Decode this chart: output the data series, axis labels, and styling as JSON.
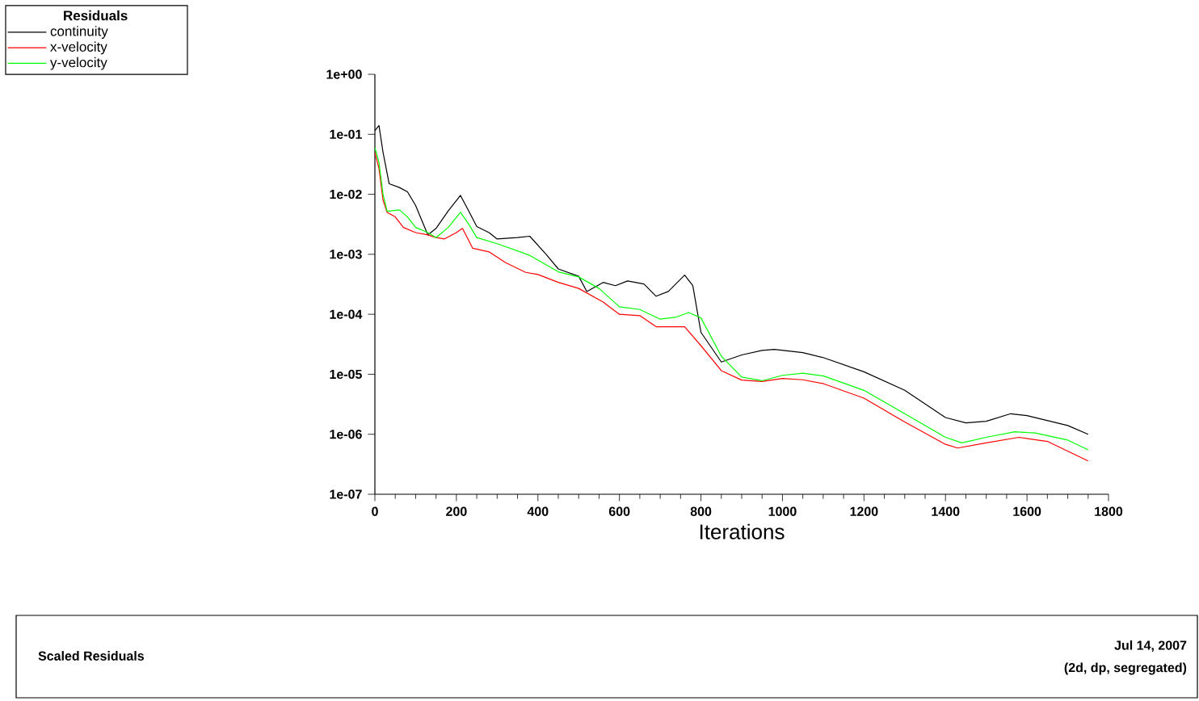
{
  "chart_data": {
    "type": "line",
    "xlabel": "Iterations",
    "legend_title": "Residuals",
    "log": "y",
    "legend": "top left",
    "marker": "none",
    "line_style": "solid",
    "grid": false,
    "xlim": [
      0,
      1800
    ],
    "xticks": [
      0,
      200,
      400,
      600,
      800,
      1000,
      1200,
      1400,
      1600,
      1800
    ],
    "ylim": [
      1e-07,
      1
    ],
    "yticks": [
      {
        "value": 1,
        "label": "1e+00"
      },
      {
        "value": 0.1,
        "label": "1e-01"
      },
      {
        "value": 0.01,
        "label": "1e-02"
      },
      {
        "value": 0.001,
        "label": "1e-03"
      },
      {
        "value": 0.0001,
        "label": "1e-04"
      },
      {
        "value": 1e-05,
        "label": "1e-05"
      },
      {
        "value": 1e-06,
        "label": "1e-06"
      },
      {
        "value": 1e-07,
        "label": "1e-07"
      }
    ],
    "annotations": [
      "Scaled Residuals",
      "Jul 14, 2007",
      "(2d, dp, segregated)"
    ],
    "series": [
      {
        "name": "continuity",
        "color": "#000000",
        "x": [
          0,
          10,
          20,
          35,
          60,
          80,
          100,
          130,
          150,
          180,
          210,
          230,
          250,
          280,
          300,
          350,
          380,
          420,
          450,
          500,
          520,
          560,
          590,
          620,
          660,
          690,
          720,
          760,
          780,
          800,
          850,
          900,
          950,
          980,
          1050,
          1100,
          1200,
          1300,
          1400,
          1450,
          1500,
          1560,
          1600,
          1700,
          1750
        ],
        "values": [
          0.115,
          0.14,
          0.05,
          0.015,
          0.013,
          0.011,
          0.0065,
          0.0021,
          0.0027,
          0.0053,
          0.0096,
          0.0053,
          0.0029,
          0.0023,
          0.0018,
          0.0019,
          0.002,
          0.001,
          0.00057,
          0.00043,
          0.00024,
          0.00034,
          0.0003,
          0.00036,
          0.00032,
          0.0002,
          0.00024,
          0.00045,
          0.0003,
          5e-05,
          1.6e-05,
          2.1e-05,
          2.5e-05,
          2.6e-05,
          2.3e-05,
          1.9e-05,
          1.1e-05,
          5.4e-06,
          1.9e-06,
          1.55e-06,
          1.65e-06,
          2.2e-06,
          2.05e-06,
          1.4e-06,
          1e-06
        ]
      },
      {
        "name": "x-velocity",
        "color": "#ff0000",
        "x": [
          0,
          10,
          20,
          30,
          50,
          70,
          100,
          130,
          150,
          170,
          200,
          215,
          240,
          280,
          320,
          370,
          400,
          450,
          500,
          560,
          600,
          650,
          690,
          760,
          800,
          850,
          900,
          950,
          1000,
          1050,
          1100,
          1200,
          1300,
          1400,
          1430,
          1500,
          1580,
          1650,
          1750
        ],
        "values": [
          0.05,
          0.027,
          0.008,
          0.005,
          0.0042,
          0.0028,
          0.0023,
          0.0021,
          0.0019,
          0.0018,
          0.0023,
          0.0027,
          0.00126,
          0.0011,
          0.00073,
          0.0005,
          0.00046,
          0.00034,
          0.00027,
          0.00016,
          0.0001,
          9.5e-05,
          6.2e-05,
          6.2e-05,
          3e-05,
          1.15e-05,
          8e-06,
          7.6e-06,
          8.5e-06,
          8.1e-06,
          7e-06,
          4e-06,
          1.6e-06,
          6.8e-07,
          5.9e-07,
          7.2e-07,
          8.9e-07,
          7.6e-07,
          3.6e-07
        ]
      },
      {
        "name": "y-velocity",
        "color": "#00ff00",
        "x": [
          0,
          10,
          20,
          30,
          60,
          80,
          100,
          130,
          150,
          180,
          210,
          230,
          250,
          300,
          380,
          450,
          500,
          550,
          600,
          650,
          700,
          740,
          770,
          800,
          850,
          900,
          950,
          1000,
          1050,
          1100,
          1200,
          1300,
          1400,
          1440,
          1500,
          1570,
          1620,
          1700,
          1750
        ],
        "values": [
          0.06,
          0.034,
          0.01,
          0.0052,
          0.0055,
          0.0042,
          0.0028,
          0.0023,
          0.0019,
          0.0028,
          0.005,
          0.0032,
          0.0019,
          0.0015,
          0.00096,
          0.00051,
          0.00042,
          0.00027,
          0.000133,
          0.00012,
          8.3e-05,
          9e-05,
          0.000107,
          8.7e-05,
          2e-05,
          9e-06,
          7.8e-06,
          9.6e-06,
          1.04e-05,
          9.4e-06,
          5.4e-06,
          2.2e-06,
          8.9e-07,
          7.2e-07,
          8.9e-07,
          1.1e-06,
          1.05e-06,
          8e-07,
          5.5e-07
        ]
      }
    ]
  }
}
